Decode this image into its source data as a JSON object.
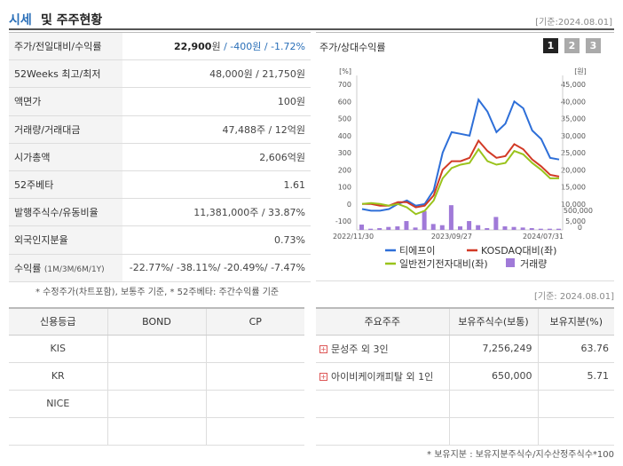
{
  "header": {
    "title_accent": "시세",
    "title_rest": "및 주주현황",
    "date": "[기준:2024.08.01]"
  },
  "stats": [
    {
      "label": "주가/전일대비/수익률",
      "price": "22,900",
      "price_unit": "원",
      "change": " / -400원 / -1.72%"
    },
    {
      "label": "52Weeks 최고/최저",
      "value": "48,000원 / 21,750원"
    },
    {
      "label": "액면가",
      "value": "100원"
    },
    {
      "label": "거래량/거래대금",
      "value": "47,488주 / 12억원"
    },
    {
      "label": "시가총액",
      "value": "2,606억원"
    },
    {
      "label": "52주베타",
      "value": "1.61"
    },
    {
      "label": "발행주식수/유동비율",
      "value": "11,381,000주 / 33.87%"
    },
    {
      "label": "외국인지분율",
      "value": "0.73%"
    },
    {
      "label": "수익률",
      "label_small": "(1M/3M/6M/1Y)",
      "value": "-22.77%/ -38.11%/ -20.49%/ -7.47%"
    }
  ],
  "notes": {
    "stats_note": "* 수정주가(차트포함), 보통주 기준, * 52주베타: 주간수익률 기준",
    "date2": "[기준: 2024.08.01]",
    "holders_note": "* 보유지분 : 보유지분주식수/지수산정주식수*100"
  },
  "chart_panel": {
    "title": "주가/상대수익률",
    "pages": [
      "1",
      "2",
      "3"
    ]
  },
  "chart_data": {
    "type": "line",
    "x_ticks": [
      "2022/11/30",
      "2023/09/27",
      "2024/07/31"
    ],
    "left_axis": {
      "unit": "[%]",
      "ticks": [
        "700",
        "600",
        "500",
        "400",
        "300",
        "200",
        "100",
        "0",
        "-100"
      ],
      "range": [
        -100,
        700
      ]
    },
    "right_axis": {
      "unit": "[원]",
      "ticks": [
        "45,000",
        "40,000",
        "35,000",
        "30,000",
        "25,000",
        "20,000",
        "15,000",
        "10,000",
        "5,000"
      ],
      "range": [
        5000,
        45000
      ]
    },
    "volume_axis": {
      "ticks": [
        "500,000",
        "0"
      ],
      "range": [
        0,
        700000
      ]
    },
    "series": [
      {
        "name": "티에프이",
        "color": "#2e6fd8",
        "values": [
          -30,
          -40,
          -40,
          -30,
          0,
          20,
          -10,
          0,
          80,
          300,
          420,
          410,
          400,
          610,
          540,
          420,
          470,
          600,
          560,
          430,
          380,
          270,
          260
        ]
      },
      {
        "name": "KOSDAQ대비(좌)",
        "color": "#d23a26",
        "values": [
          0,
          0,
          -10,
          -10,
          10,
          10,
          -20,
          -10,
          50,
          200,
          250,
          250,
          270,
          370,
          310,
          270,
          280,
          350,
          320,
          260,
          220,
          170,
          160
        ]
      },
      {
        "name": "일반전기전자대비(좌)",
        "color": "#9ac31c",
        "values": [
          0,
          5,
          0,
          -10,
          0,
          -20,
          -60,
          -40,
          20,
          150,
          210,
          230,
          240,
          320,
          250,
          230,
          240,
          310,
          290,
          240,
          200,
          150,
          150
        ]
      }
    ],
    "volume": {
      "name": "거래량",
      "color": "#a07ad8",
      "values": [
        90000,
        20000,
        30000,
        50000,
        60000,
        150000,
        40000,
        320000,
        100000,
        80000,
        420000,
        60000,
        150000,
        80000,
        30000,
        220000,
        60000,
        50000,
        40000,
        30000,
        20000,
        20000,
        20000
      ]
    }
  },
  "credit": {
    "headers": [
      "신용등급",
      "BOND",
      "CP"
    ],
    "rows": [
      [
        "KIS",
        "",
        ""
      ],
      [
        "KR",
        "",
        ""
      ],
      [
        "NICE",
        "",
        ""
      ],
      [
        "",
        "",
        ""
      ]
    ]
  },
  "holders": {
    "headers": [
      "주요주주",
      "보유주식수(보통)",
      "보유지분(%)"
    ],
    "rows": [
      {
        "name": "문성주 외 3인",
        "shares": "7,256,249",
        "pct": "63.76"
      },
      {
        "name": "아이비케이캐피탈 외 1인",
        "shares": "650,000",
        "pct": "5.71"
      },
      {
        "name": "",
        "shares": "",
        "pct": ""
      },
      {
        "name": "",
        "shares": "",
        "pct": ""
      }
    ]
  }
}
